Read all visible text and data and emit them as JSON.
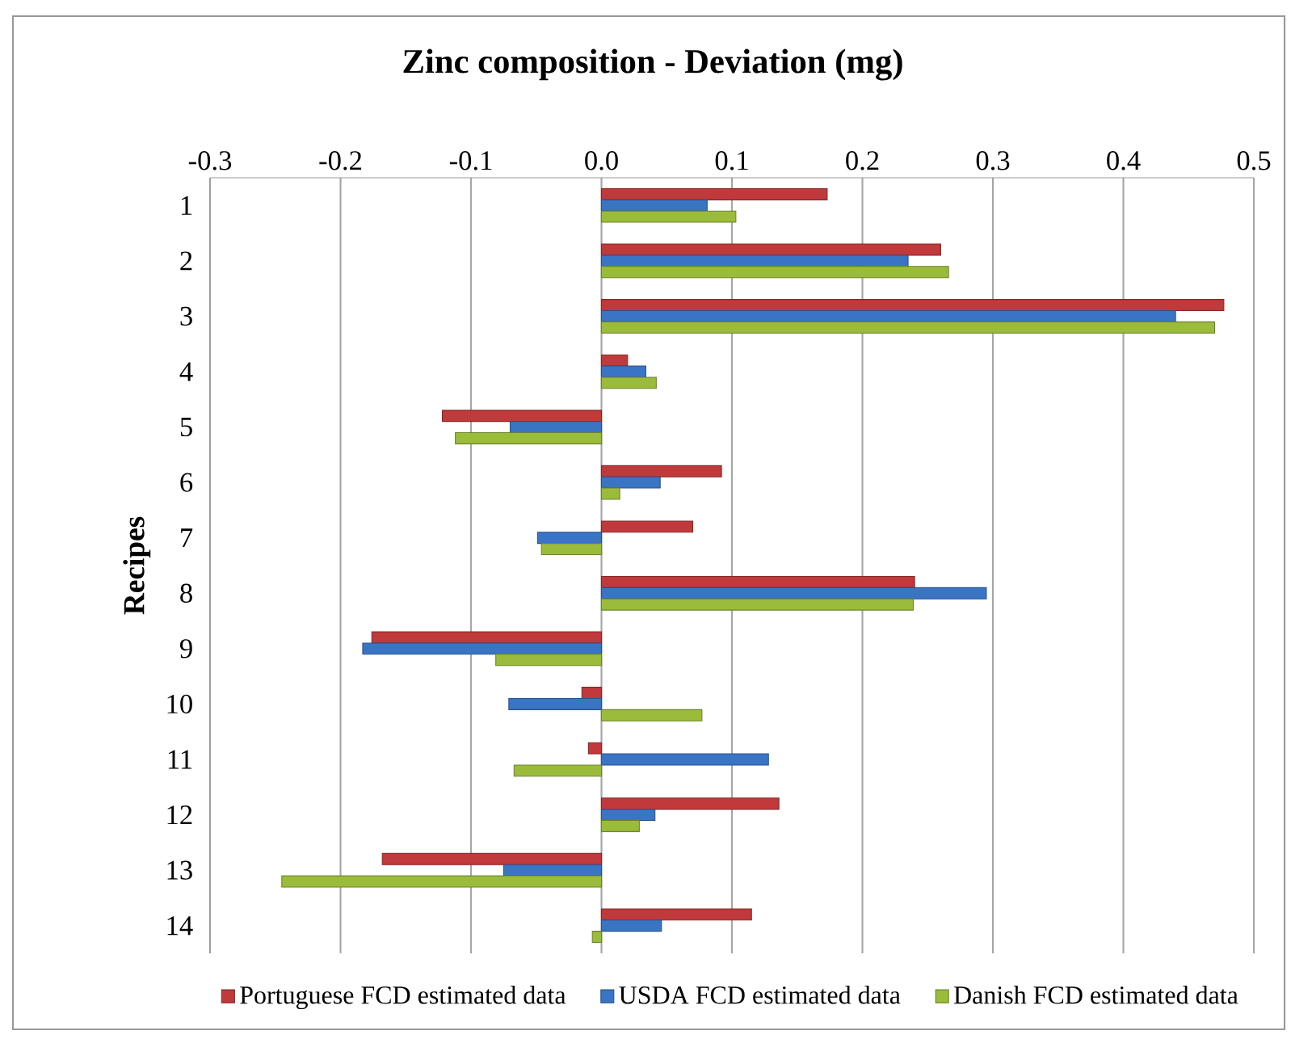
{
  "chart_data": {
    "type": "bar",
    "orientation": "horizontal",
    "title": "Zinc composition - Deviation  (mg)",
    "ylabel": "Recipes",
    "categories": [
      "1",
      "2",
      "3",
      "4",
      "5",
      "6",
      "7",
      "8",
      "9",
      "10",
      "11",
      "12",
      "13",
      "14"
    ],
    "series": [
      {
        "name": "Portuguese FCD estimated data",
        "color": "#c0393b",
        "values": [
          0.173,
          0.26,
          0.477,
          0.02,
          -0.122,
          0.092,
          0.07,
          0.24,
          -0.176,
          -0.015,
          -0.01,
          0.136,
          -0.168,
          0.115
        ]
      },
      {
        "name": "USDA FCD estimated data",
        "color": "#3a75c4",
        "values": [
          0.081,
          0.235,
          0.44,
          0.034,
          -0.07,
          0.045,
          -0.049,
          0.295,
          -0.183,
          -0.071,
          0.128,
          0.041,
          -0.075,
          0.046
        ]
      },
      {
        "name": "Danish FCD estimated data",
        "color": "#9bbb3b",
        "values": [
          0.103,
          0.266,
          0.47,
          0.042,
          -0.112,
          0.014,
          -0.046,
          0.239,
          -0.081,
          0.077,
          -0.067,
          0.029,
          -0.245,
          -0.007
        ]
      }
    ],
    "xlim": [
      -0.3,
      0.5
    ],
    "xticks": [
      -0.3,
      -0.2,
      -0.1,
      {
        "value": 0,
        "label": "0.0"
      },
      0.1,
      0.2,
      0.3,
      0.4,
      0.5
    ],
    "grid": "x",
    "legend": "bottom"
  }
}
